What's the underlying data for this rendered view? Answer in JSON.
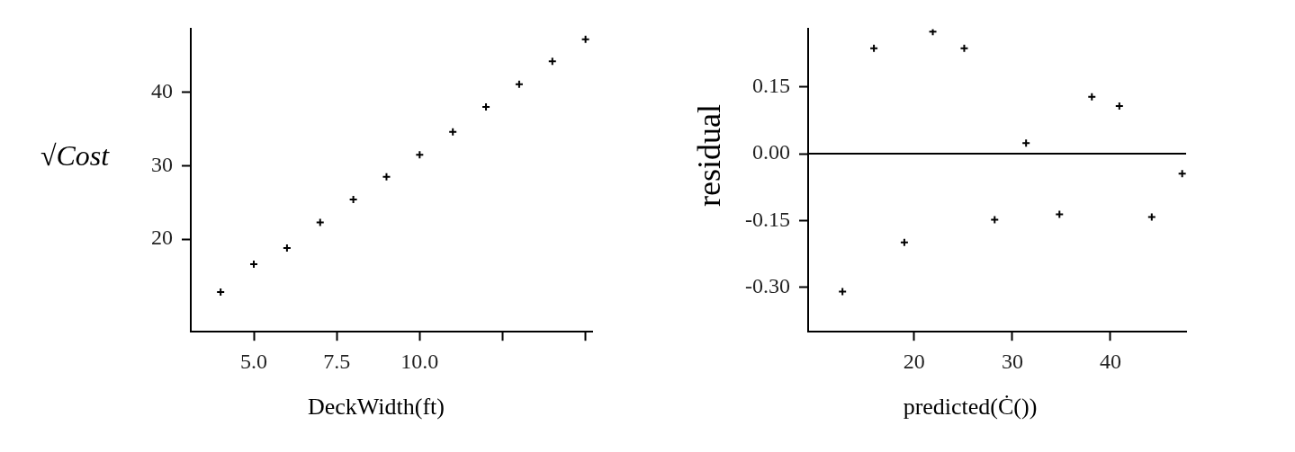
{
  "chart_data": [
    {
      "type": "scatter",
      "xlabel": "DeckWidth(ft)",
      "ylabel": "√Cost",
      "marker": "cross",
      "grid": false,
      "legend": false,
      "x": [
        4,
        5,
        6,
        7,
        8,
        9,
        10,
        11,
        12,
        13,
        14,
        15
      ],
      "series": [
        {
          "color": "#000000",
          "values": [
            12.8,
            16.6,
            18.8,
            22.3,
            25.4,
            28.5,
            31.5,
            34.6,
            38.0,
            41.1,
            44.2,
            47.2
          ]
        }
      ],
      "xlim": [
        3.1,
        15.2
      ],
      "xticks": [
        {
          "value": 5,
          "label": "5.0"
        },
        7.5,
        {
          "value": 10,
          "label": "10.0"
        },
        {
          "value": 12.5,
          "label": null
        },
        {
          "value": 15,
          "label": null
        }
      ],
      "ylim": [
        7.4,
        48.6
      ],
      "yticks": [
        20,
        30,
        40
      ]
    },
    {
      "type": "scatter",
      "xlabel": "predicted(Ċ())",
      "ylabel": "residual",
      "marker": "cross",
      "grid": false,
      "legend": false,
      "x": [
        12.7,
        15.9,
        19.0,
        21.9,
        25.1,
        28.2,
        31.4,
        34.8,
        38.1,
        40.9,
        44.2,
        47.3
      ],
      "series": [
        {
          "color": "#000000",
          "values": [
            -0.31,
            0.237,
            -0.199,
            0.274,
            0.237,
            -0.148,
            0.024,
            -0.136,
            0.128,
            0.107,
            -0.142,
            -0.045
          ]
        }
      ],
      "xlim": [
        9.2,
        47.7
      ],
      "xticks": [
        20,
        30,
        40
      ],
      "ylim": [
        -0.4,
        0.28
      ],
      "yticks": [
        0.15,
        {
          "value": 0,
          "label": "0.00"
        },
        -0.15,
        {
          "value": -0.3,
          "label": "-0.30"
        }
      ],
      "ref_lines": [
        {
          "axis": "y",
          "value": 0,
          "color": "#000000"
        }
      ]
    }
  ]
}
